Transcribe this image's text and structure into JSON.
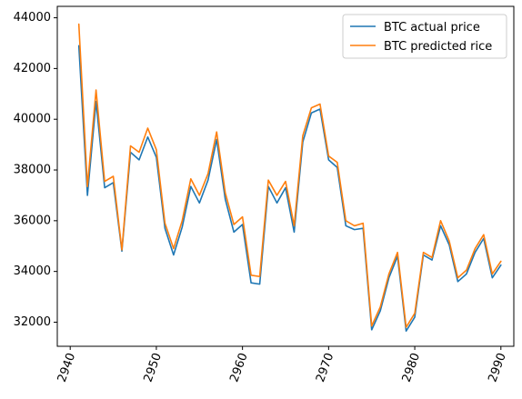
{
  "chart_data": {
    "type": "line",
    "title": "",
    "xlabel": "",
    "ylabel": "",
    "xlim": [
      2938.5,
      2991.5
    ],
    "ylim": [
      31050,
      44450
    ],
    "x_ticks": [
      2940,
      2950,
      2960,
      2970,
      2980,
      2990
    ],
    "y_ticks": [
      32000,
      34000,
      36000,
      38000,
      40000,
      42000,
      44000
    ],
    "x_tick_labels": [
      "2940",
      "2950",
      "2960",
      "2970",
      "2980",
      "2990"
    ],
    "y_tick_labels": [
      "32000",
      "34000",
      "36000",
      "38000",
      "40000",
      "42000",
      "44000"
    ],
    "x_tick_rotation_deg": 70,
    "grid": false,
    "legend_position": "top-right",
    "x": [
      2941,
      2942,
      2943,
      2944,
      2945,
      2946,
      2947,
      2948,
      2949,
      2950,
      2951,
      2952,
      2953,
      2954,
      2955,
      2956,
      2957,
      2958,
      2959,
      2960,
      2961,
      2962,
      2963,
      2964,
      2965,
      2966,
      2967,
      2968,
      2969,
      2970,
      2971,
      2972,
      2973,
      2974,
      2975,
      2976,
      2977,
      2978,
      2979,
      2980,
      2981,
      2982,
      2983,
      2984,
      2985,
      2986,
      2987,
      2988,
      2989,
      2990
    ],
    "series": [
      {
        "name": "BTC actual price",
        "color": "#1f77b4",
        "values": [
          42900,
          37000,
          40700,
          37300,
          37500,
          34800,
          38700,
          38400,
          39300,
          38500,
          35700,
          34650,
          35750,
          37350,
          36700,
          37600,
          39200,
          36850,
          35550,
          35850,
          33550,
          33500,
          37350,
          36700,
          37300,
          35550,
          39100,
          40250,
          40400,
          38400,
          38100,
          35800,
          35650,
          35700,
          31700,
          32450,
          33750,
          34600,
          31650,
          32200,
          34650,
          34450,
          35800,
          35050,
          33600,
          33900,
          34750,
          35300,
          33750,
          34250
        ]
      },
      {
        "name": "BTC predicted rice",
        "color": "#ff7f0e",
        "values": [
          43750,
          37350,
          41150,
          37550,
          37750,
          34850,
          38950,
          38700,
          39650,
          38800,
          35900,
          34900,
          36000,
          37650,
          37000,
          37850,
          39500,
          37100,
          35850,
          36150,
          33850,
          33800,
          37600,
          37000,
          37550,
          35800,
          39350,
          40450,
          40600,
          38550,
          38300,
          36000,
          35800,
          35900,
          31850,
          32600,
          33900,
          34750,
          31800,
          32350,
          34750,
          34550,
          36000,
          35200,
          33750,
          34050,
          34900,
          35450,
          33900,
          34400
        ]
      }
    ]
  }
}
